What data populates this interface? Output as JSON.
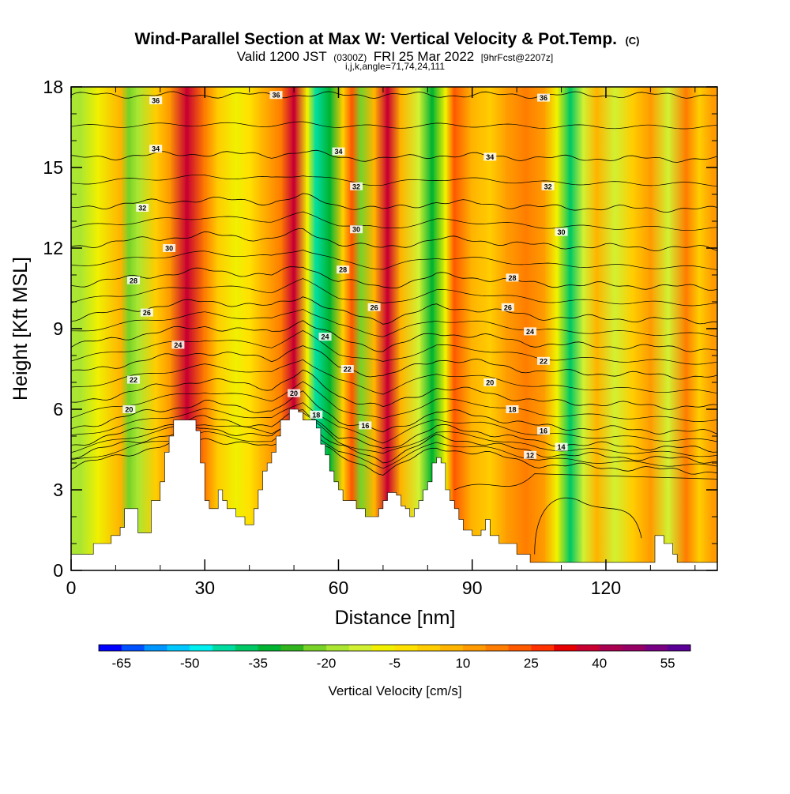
{
  "header": {
    "title": "Wind-Parallel Section at Max W: Vertical Velocity & Pot.Temp.",
    "title_unit": "(C)",
    "valid_prefix": "Valid 1200 JST",
    "valid_utc": "(0300Z)",
    "valid_date": "FRI 25 Mar 2022",
    "forecast": "[9hrFcst@2207z]",
    "grid_info": "i,j,k,angle=71,74,24,111"
  },
  "chart_data": {
    "type": "heatmap",
    "xlabel": "Distance [nm]",
    "ylabel": "Height [Kft MSL]",
    "xlim": [
      0,
      145
    ],
    "ylim": [
      0,
      18
    ],
    "x_ticks": [
      "0",
      "30",
      "60",
      "90",
      "120"
    ],
    "x_tick_values": [
      0,
      30,
      60,
      90,
      120
    ],
    "y_ticks": [
      "0",
      "3",
      "6",
      "9",
      "12",
      "15",
      "18"
    ],
    "y_tick_values": [
      0,
      3,
      6,
      9,
      12,
      15,
      18
    ],
    "terrain": [
      [
        0,
        0.6
      ],
      [
        4,
        0.6
      ],
      [
        5,
        1.0
      ],
      [
        8,
        1.0
      ],
      [
        9,
        1.3
      ],
      [
        11,
        1.6
      ],
      [
        12,
        2.3
      ],
      [
        14,
        2.3
      ],
      [
        15,
        1.4
      ],
      [
        17,
        1.4
      ],
      [
        18,
        2.6
      ],
      [
        20,
        3.3
      ],
      [
        21,
        4.4
      ],
      [
        22,
        5.0
      ],
      [
        23,
        5.6
      ],
      [
        25,
        5.6
      ],
      [
        26,
        5.6
      ],
      [
        27,
        5.6
      ],
      [
        28,
        5.2
      ],
      [
        29,
        4.0
      ],
      [
        30,
        2.6
      ],
      [
        31,
        2.3
      ],
      [
        32,
        2.3
      ],
      [
        33,
        3.0
      ],
      [
        34,
        2.6
      ],
      [
        35,
        2.3
      ],
      [
        36,
        2.3
      ],
      [
        37,
        2.0
      ],
      [
        38,
        2.0
      ],
      [
        39,
        1.7
      ],
      [
        40,
        1.7
      ],
      [
        41,
        2.3
      ],
      [
        42,
        3.0
      ],
      [
        43,
        3.7
      ],
      [
        44,
        4.0
      ],
      [
        45,
        4.4
      ],
      [
        46,
        5.0
      ],
      [
        47,
        5.6
      ],
      [
        48,
        5.6
      ],
      [
        49,
        6.0
      ],
      [
        50,
        6.0
      ],
      [
        51,
        5.9
      ],
      [
        52,
        5.6
      ],
      [
        54,
        5.6
      ],
      [
        55,
        5.3
      ],
      [
        56,
        4.7
      ],
      [
        57,
        4.3
      ],
      [
        58,
        3.7
      ],
      [
        59,
        3.3
      ],
      [
        60,
        3.0
      ],
      [
        61,
        2.6
      ],
      [
        63,
        2.6
      ],
      [
        64,
        2.3
      ],
      [
        66,
        2.0
      ],
      [
        68,
        2.0
      ],
      [
        69,
        2.3
      ],
      [
        70,
        2.6
      ],
      [
        71,
        2.9
      ],
      [
        73,
        2.8
      ],
      [
        74,
        2.4
      ],
      [
        75,
        2.3
      ],
      [
        76,
        2.0
      ],
      [
        77,
        2.3
      ],
      [
        78,
        2.6
      ],
      [
        79,
        3.0
      ],
      [
        80,
        3.3
      ],
      [
        81,
        4.0
      ],
      [
        82,
        4.2
      ],
      [
        83,
        4.0
      ],
      [
        84,
        3.0
      ],
      [
        85,
        2.6
      ],
      [
        86,
        2.3
      ],
      [
        87,
        1.9
      ],
      [
        88,
        1.5
      ],
      [
        90,
        1.3
      ],
      [
        92,
        1.5
      ],
      [
        93,
        1.9
      ],
      [
        94,
        1.3
      ],
      [
        96,
        1.0
      ],
      [
        100,
        0.6
      ],
      [
        102,
        0.6
      ],
      [
        103,
        0.3
      ],
      [
        130,
        0.3
      ],
      [
        131,
        1.3
      ],
      [
        132,
        1.3
      ],
      [
        133,
        1.0
      ],
      [
        135,
        0.6
      ],
      [
        136,
        0.3
      ],
      [
        145,
        0.3
      ]
    ],
    "w_bands": [
      {
        "x": 2,
        "w": -18
      },
      {
        "x": 6,
        "w": -8
      },
      {
        "x": 11,
        "w": 5
      },
      {
        "x": 13,
        "w": -22
      },
      {
        "x": 15,
        "w": -18
      },
      {
        "x": 19,
        "w": 3
      },
      {
        "x": 22,
        "w": 10
      },
      {
        "x": 26,
        "w": 35
      },
      {
        "x": 30,
        "w": 18
      },
      {
        "x": 33,
        "w": 3
      },
      {
        "x": 37,
        "w": -10
      },
      {
        "x": 40,
        "w": -5
      },
      {
        "x": 43,
        "w": 5
      },
      {
        "x": 47,
        "w": 18
      },
      {
        "x": 50,
        "w": 38
      },
      {
        "x": 53,
        "w": -8
      },
      {
        "x": 55,
        "w": -45
      },
      {
        "x": 58,
        "w": -35
      },
      {
        "x": 61,
        "w": 3
      },
      {
        "x": 63,
        "w": 20
      },
      {
        "x": 65,
        "w": -22
      },
      {
        "x": 68,
        "w": 5
      },
      {
        "x": 71,
        "w": 38
      },
      {
        "x": 74,
        "w": 8
      },
      {
        "x": 78,
        "w": -15
      },
      {
        "x": 81,
        "w": -35
      },
      {
        "x": 84,
        "w": -8
      },
      {
        "x": 86,
        "w": 20
      },
      {
        "x": 90,
        "w": 8
      },
      {
        "x": 94,
        "w": 2
      },
      {
        "x": 98,
        "w": 10
      },
      {
        "x": 102,
        "w": 18
      },
      {
        "x": 106,
        "w": 10
      },
      {
        "x": 109,
        "w": -8
      },
      {
        "x": 112,
        "w": -40
      },
      {
        "x": 115,
        "w": -15
      },
      {
        "x": 118,
        "w": 5
      },
      {
        "x": 122,
        "w": -12
      },
      {
        "x": 126,
        "w": 3
      },
      {
        "x": 130,
        "w": 10
      },
      {
        "x": 134,
        "w": -15
      },
      {
        "x": 138,
        "w": 15
      },
      {
        "x": 141,
        "w": 2
      },
      {
        "x": 144,
        "w": 10
      }
    ],
    "theta_base": [
      {
        "x": 0,
        "h": 2.8
      },
      {
        "x": 18,
        "h": 3.6
      },
      {
        "x": 30,
        "h": 4.0
      },
      {
        "x": 45,
        "h": 3.6
      },
      {
        "x": 52,
        "h": 4.4
      },
      {
        "x": 60,
        "h": 3.2
      },
      {
        "x": 70,
        "h": 2.6
      },
      {
        "x": 82,
        "h": 3.6
      },
      {
        "x": 92,
        "h": 3.4
      },
      {
        "x": 105,
        "h": 2.9
      },
      {
        "x": 120,
        "h": 2.8
      },
      {
        "x": 145,
        "h": 2.6
      }
    ],
    "theta_levels": [
      {
        "value": 36,
        "h": 17.7
      },
      {
        "value": 34,
        "h": 15.4
      },
      {
        "value": 32,
        "h": 13.6
      },
      {
        "value": 30,
        "h": 12.2
      },
      {
        "value": 28,
        "h": 10.8
      },
      {
        "value": 26,
        "h": 9.6
      },
      {
        "value": 24,
        "h": 8.6
      },
      {
        "value": 22,
        "h": 7.6
      },
      {
        "value": 20,
        "h": 6.5
      },
      {
        "value": 18,
        "h": 5.6
      },
      {
        "value": 16,
        "h": 5.0
      },
      {
        "value": 14,
        "h": 4.6
      },
      {
        "value": 12,
        "h": 4.2
      }
    ],
    "contour_labels": [
      {
        "text": "36",
        "x": 19,
        "h": 17.5
      },
      {
        "text": "36",
        "x": 46,
        "h": 17.7
      },
      {
        "text": "36",
        "x": 106,
        "h": 17.6
      },
      {
        "text": "34",
        "x": 19,
        "h": 15.7
      },
      {
        "text": "34",
        "x": 60,
        "h": 15.6
      },
      {
        "text": "34",
        "x": 94,
        "h": 15.4
      },
      {
        "text": "32",
        "x": 16,
        "h": 13.5
      },
      {
        "text": "32",
        "x": 64,
        "h": 14.3
      },
      {
        "text": "32",
        "x": 107,
        "h": 14.3
      },
      {
        "text": "30",
        "x": 22,
        "h": 12.0
      },
      {
        "text": "30",
        "x": 64,
        "h": 12.7
      },
      {
        "text": "30",
        "x": 110,
        "h": 12.6
      },
      {
        "text": "28",
        "x": 14,
        "h": 10.8
      },
      {
        "text": "28",
        "x": 61,
        "h": 11.2
      },
      {
        "text": "28",
        "x": 99,
        "h": 10.9
      },
      {
        "text": "26",
        "x": 17,
        "h": 9.6
      },
      {
        "text": "26",
        "x": 68,
        "h": 9.8
      },
      {
        "text": "26",
        "x": 98,
        "h": 9.8
      },
      {
        "text": "24",
        "x": 24,
        "h": 8.4
      },
      {
        "text": "24",
        "x": 57,
        "h": 8.7
      },
      {
        "text": "24",
        "x": 103,
        "h": 8.9
      },
      {
        "text": "22",
        "x": 14,
        "h": 7.1
      },
      {
        "text": "22",
        "x": 62,
        "h": 7.5
      },
      {
        "text": "22",
        "x": 106,
        "h": 7.8
      },
      {
        "text": "20",
        "x": 13,
        "h": 6.0
      },
      {
        "text": "20",
        "x": 50,
        "h": 6.6
      },
      {
        "text": "20",
        "x": 94,
        "h": 7.0
      },
      {
        "text": "18",
        "x": 55,
        "h": 5.8
      },
      {
        "text": "18",
        "x": 99,
        "h": 6.0
      },
      {
        "text": "16",
        "x": 66,
        "h": 5.4
      },
      {
        "text": "16",
        "x": 106,
        "h": 5.2
      },
      {
        "text": "14",
        "x": 110,
        "h": 4.6
      },
      {
        "text": "12",
        "x": 103,
        "h": 4.3
      }
    ],
    "colorbar": {
      "label": "Vertical Velocity [cm/s]",
      "tick_labels": [
        "-65",
        "-50",
        "-35",
        "-20",
        "-5",
        "10",
        "25",
        "40",
        "55"
      ],
      "colors": [
        "#0000ff",
        "#0050ff",
        "#0096ff",
        "#00c8ff",
        "#00f0f0",
        "#00dca0",
        "#00c864",
        "#00b432",
        "#32b41e",
        "#78d228",
        "#aae632",
        "#d2f032",
        "#f0f000",
        "#ffe100",
        "#ffcd00",
        "#ffb400",
        "#ff9b00",
        "#ff7d00",
        "#ff5a00",
        "#ff3200",
        "#e60000",
        "#c80032",
        "#aa0050",
        "#960064",
        "#780082",
        "#5a0096"
      ]
    }
  }
}
